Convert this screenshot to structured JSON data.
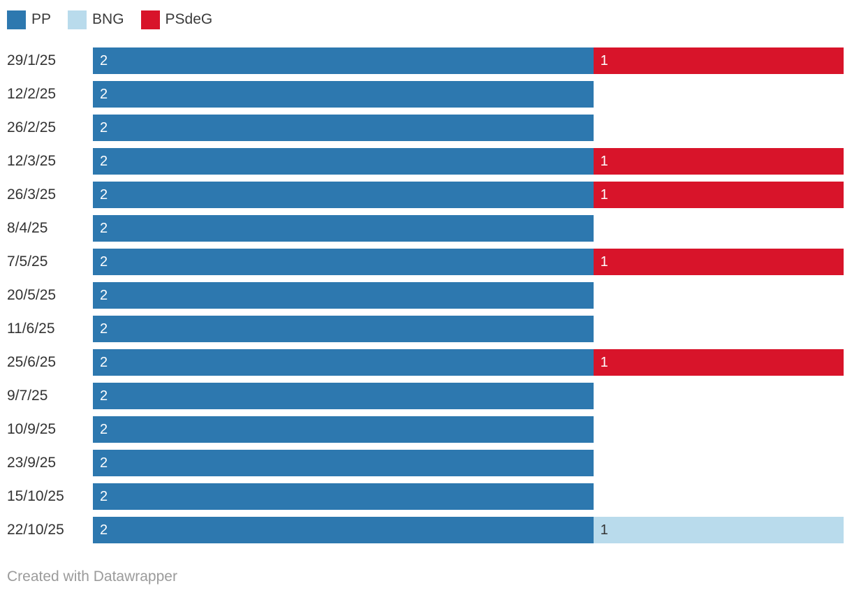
{
  "legend": {
    "items": [
      {
        "label": "PP",
        "color": "#2d78af",
        "text_color": "#ffffff"
      },
      {
        "label": "BNG",
        "color": "#b9dbec",
        "text_color": "#333333"
      },
      {
        "label": "PSdeG",
        "color": "#d8142a",
        "text_color": "#ffffff"
      }
    ]
  },
  "footer": {
    "text": "Created with Datawrapper"
  },
  "chart_data": {
    "type": "bar",
    "stacked": true,
    "orientation": "horizontal",
    "value_labels": true,
    "grid": false,
    "xlim": [
      0,
      3
    ],
    "categories": [
      "29/1/25",
      "12/2/25",
      "26/2/25",
      "12/3/25",
      "26/3/25",
      "8/4/25",
      "7/5/25",
      "20/5/25",
      "11/6/25",
      "25/6/25",
      "9/7/25",
      "10/9/25",
      "23/9/25",
      "15/10/25",
      "22/10/25"
    ],
    "series": [
      {
        "name": "PP",
        "color": "#2d78af",
        "label_color": "#ffffff",
        "values": [
          2,
          2,
          2,
          2,
          2,
          2,
          2,
          2,
          2,
          2,
          2,
          2,
          2,
          2,
          2
        ]
      },
      {
        "name": "BNG",
        "color": "#b9dbec",
        "label_color": "#333333",
        "values": [
          0,
          0,
          0,
          0,
          0,
          0,
          0,
          0,
          0,
          0,
          0,
          0,
          0,
          0,
          1
        ]
      },
      {
        "name": "PSdeG",
        "color": "#d8142a",
        "label_color": "#ffffff",
        "values": [
          1,
          0,
          0,
          1,
          1,
          0,
          1,
          0,
          0,
          1,
          0,
          0,
          0,
          0,
          0
        ]
      }
    ]
  }
}
